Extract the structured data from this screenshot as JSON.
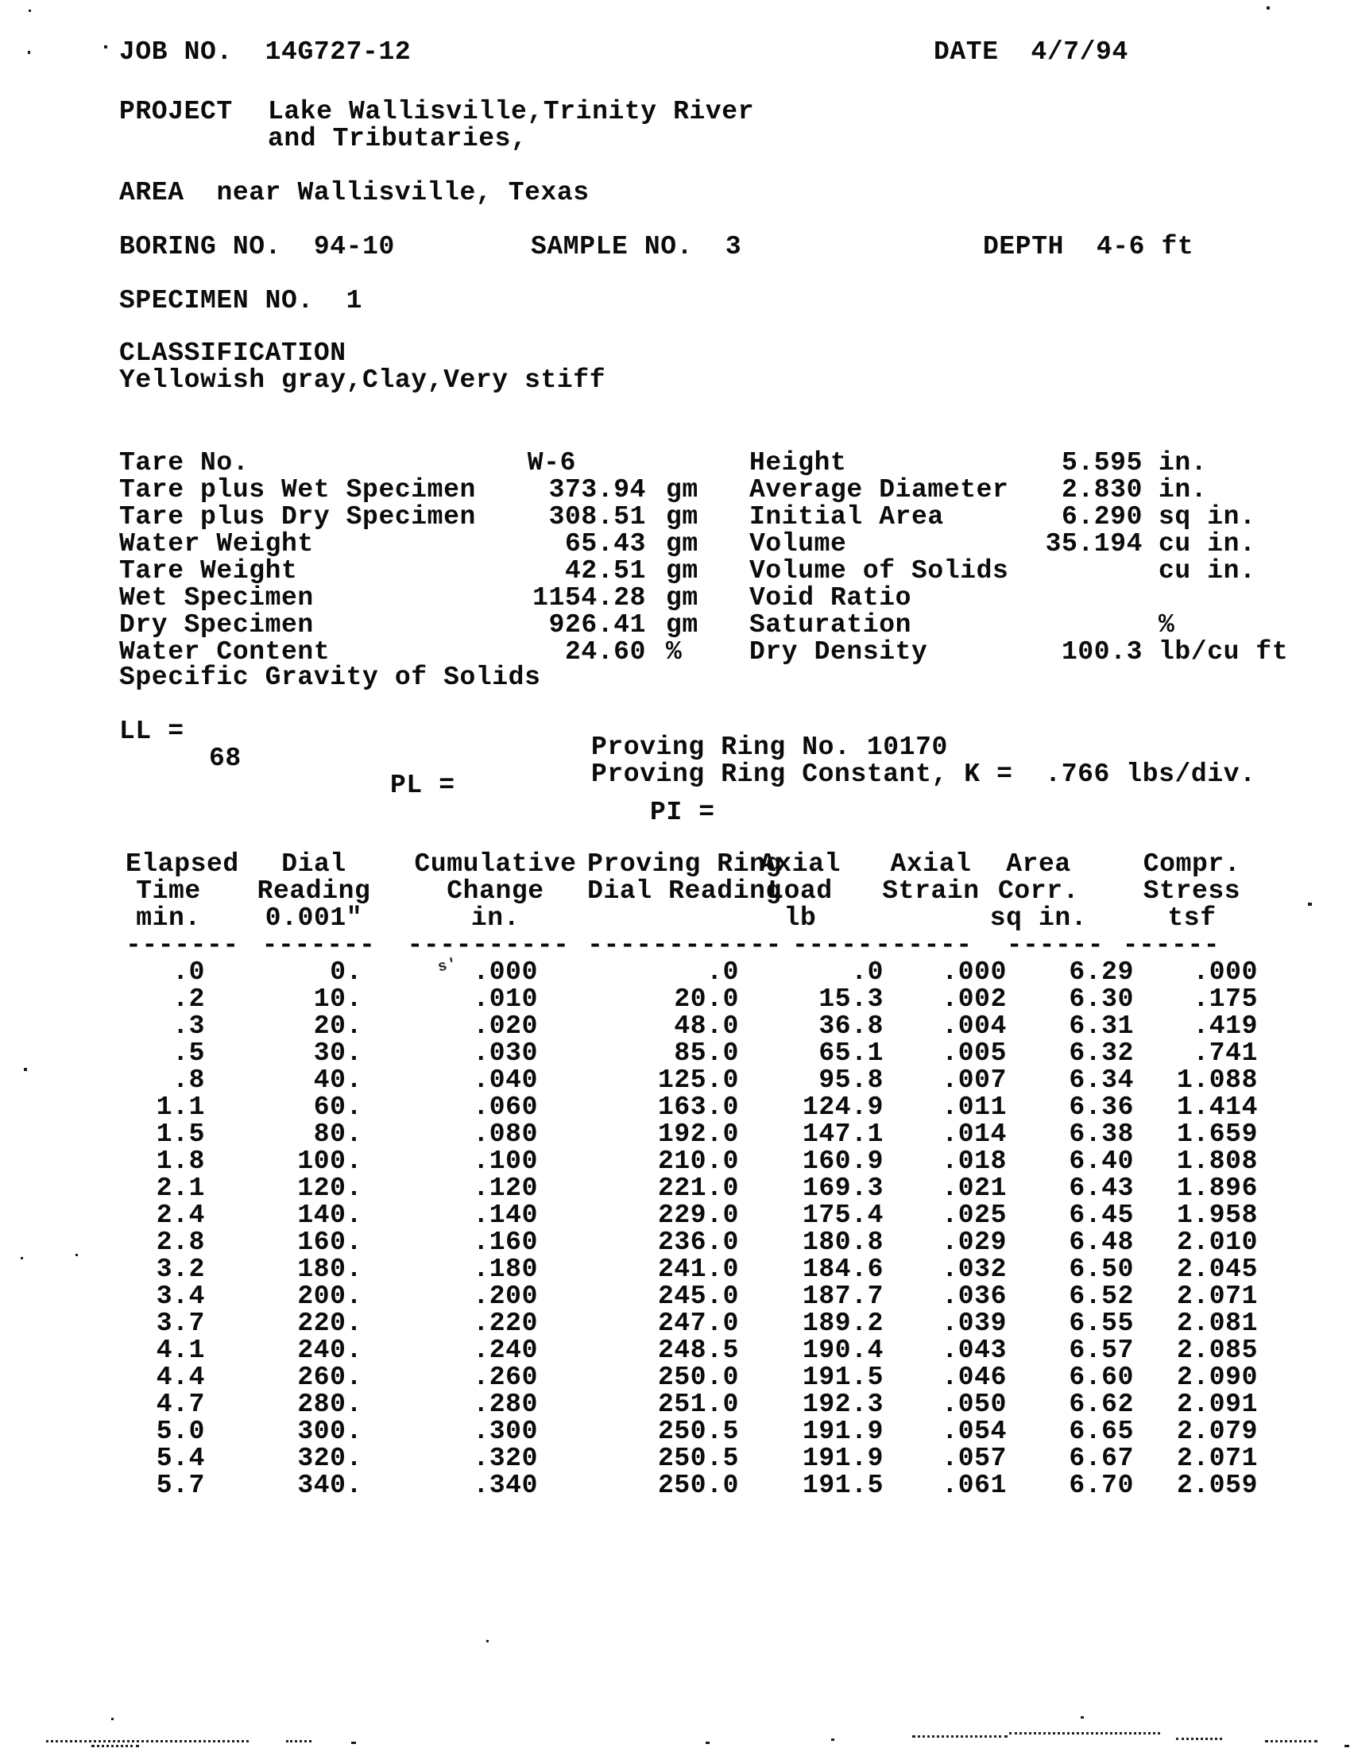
{
  "header": {
    "job_no_label": "JOB NO.",
    "job_no": "14G727-12",
    "date_label": "DATE",
    "date": "4/7/94",
    "project_label": "PROJECT",
    "project_line1": "Lake Wallisville,Trinity River",
    "project_line2": "and Tributaries,",
    "area_label": "AREA",
    "area": "near Wallisville, Texas",
    "boring_label": "BORING NO.",
    "boring_no": "94-10",
    "sample_label": "SAMPLE NO.",
    "sample_no": "3",
    "depth_label": "DEPTH",
    "depth": "4-6 ft",
    "specimen_label": "SPECIMEN NO.",
    "specimen_no": "1",
    "classification_label": "CLASSIFICATION",
    "classification": "Yellowish gray,Clay,Very stiff"
  },
  "specimen_data": {
    "left": [
      {
        "label": "Tare No.",
        "value": "W-6",
        "unit": ""
      },
      {
        "label": "Tare plus Wet Specimen",
        "value": "373.94",
        "unit": "gm"
      },
      {
        "label": "Tare plus Dry Specimen",
        "value": "308.51",
        "unit": "gm"
      },
      {
        "label": "Water Weight",
        "value": "65.43",
        "unit": "gm"
      },
      {
        "label": "Tare Weight",
        "value": "42.51",
        "unit": "gm"
      },
      {
        "label": "Wet Specimen",
        "value": "1154.28",
        "unit": "gm"
      },
      {
        "label": "Dry Specimen",
        "value": "926.41",
        "unit": "gm"
      },
      {
        "label": "Water Content",
        "value": "24.60",
        "unit": "%"
      }
    ],
    "right": [
      {
        "label": "Height",
        "value": "5.595",
        "unit": "in."
      },
      {
        "label": "Average Diameter",
        "value": "2.830",
        "unit": "in."
      },
      {
        "label": "Initial Area",
        "value": "6.290",
        "unit": "sq in."
      },
      {
        "label": "Volume",
        "value": "35.194",
        "unit": "cu in."
      },
      {
        "label": "Volume of Solids",
        "value": "",
        "unit": "cu in."
      },
      {
        "label": "Void Ratio",
        "value": "",
        "unit": ""
      },
      {
        "label": "Saturation",
        "value": "",
        "unit": "%"
      },
      {
        "label": "Dry Density",
        "value": "100.3",
        "unit": "lb/cu ft"
      }
    ],
    "specific_gravity_line": "Specific Gravity of Solids",
    "atterberg": {
      "ll_label": "LL =",
      "ll_value": "68",
      "pl_label": "PL =",
      "pi_label": "PI ="
    }
  },
  "proving_ring": {
    "line1": "Proving Ring No. 10170",
    "line2": "Proving Ring Constant, K =  .766 lbs/div."
  },
  "table": {
    "headers": [
      [
        "Elapsed",
        "Time",
        "min."
      ],
      [
        "Dial",
        "Reading",
        "0.001\""
      ],
      [
        "Cumulative",
        "Change",
        "in."
      ],
      [
        "Proving Ring",
        "Dial Reading",
        ""
      ],
      [
        "Axial",
        "Load",
        "lb"
      ],
      [
        "Axial",
        "Strain",
        ""
      ],
      [
        "Area",
        "Corr.",
        "sq in."
      ],
      [
        "Compr.",
        "Stress",
        "tsf"
      ]
    ],
    "dashes": [
      "-------",
      "-------",
      "----------",
      "------------",
      "-----",
      "------",
      "------",
      "------"
    ],
    "rows": [
      [
        ".0",
        "0.",
        ".000",
        ".0",
        ".0",
        ".000",
        "6.29",
        ".000"
      ],
      [
        ".2",
        "10.",
        ".010",
        "20.0",
        "15.3",
        ".002",
        "6.30",
        ".175"
      ],
      [
        ".3",
        "20.",
        ".020",
        "48.0",
        "36.8",
        ".004",
        "6.31",
        ".419"
      ],
      [
        ".5",
        "30.",
        ".030",
        "85.0",
        "65.1",
        ".005",
        "6.32",
        ".741"
      ],
      [
        ".8",
        "40.",
        ".040",
        "125.0",
        "95.8",
        ".007",
        "6.34",
        "1.088"
      ],
      [
        "1.1",
        "60.",
        ".060",
        "163.0",
        "124.9",
        ".011",
        "6.36",
        "1.414"
      ],
      [
        "1.5",
        "80.",
        ".080",
        "192.0",
        "147.1",
        ".014",
        "6.38",
        "1.659"
      ],
      [
        "1.8",
        "100.",
        ".100",
        "210.0",
        "160.9",
        ".018",
        "6.40",
        "1.808"
      ],
      [
        "2.1",
        "120.",
        ".120",
        "221.0",
        "169.3",
        ".021",
        "6.43",
        "1.896"
      ],
      [
        "2.4",
        "140.",
        ".140",
        "229.0",
        "175.4",
        ".025",
        "6.45",
        "1.958"
      ],
      [
        "2.8",
        "160.",
        ".160",
        "236.0",
        "180.8",
        ".029",
        "6.48",
        "2.010"
      ],
      [
        "3.2",
        "180.",
        ".180",
        "241.0",
        "184.6",
        ".032",
        "6.50",
        "2.045"
      ],
      [
        "3.4",
        "200.",
        ".200",
        "245.0",
        "187.7",
        ".036",
        "6.52",
        "2.071"
      ],
      [
        "3.7",
        "220.",
        ".220",
        "247.0",
        "189.2",
        ".039",
        "6.55",
        "2.081"
      ],
      [
        "4.1",
        "240.",
        ".240",
        "248.5",
        "190.4",
        ".043",
        "6.57",
        "2.085"
      ],
      [
        "4.4",
        "260.",
        ".260",
        "250.0",
        "191.5",
        ".046",
        "6.60",
        "2.090"
      ],
      [
        "4.7",
        "280.",
        ".280",
        "251.0",
        "192.3",
        ".050",
        "6.62",
        "2.091"
      ],
      [
        "5.0",
        "300.",
        ".300",
        "250.5",
        "191.9",
        ".054",
        "6.65",
        "2.079"
      ],
      [
        "5.4",
        "320.",
        ".320",
        "250.5",
        "191.9",
        ".057",
        "6.67",
        "2.071"
      ],
      [
        "5.7",
        "340.",
        ".340",
        "250.0",
        "191.5",
        ".061",
        "6.70",
        "2.059"
      ]
    ]
  },
  "artifacts": {
    "row1_mark": "s'"
  }
}
